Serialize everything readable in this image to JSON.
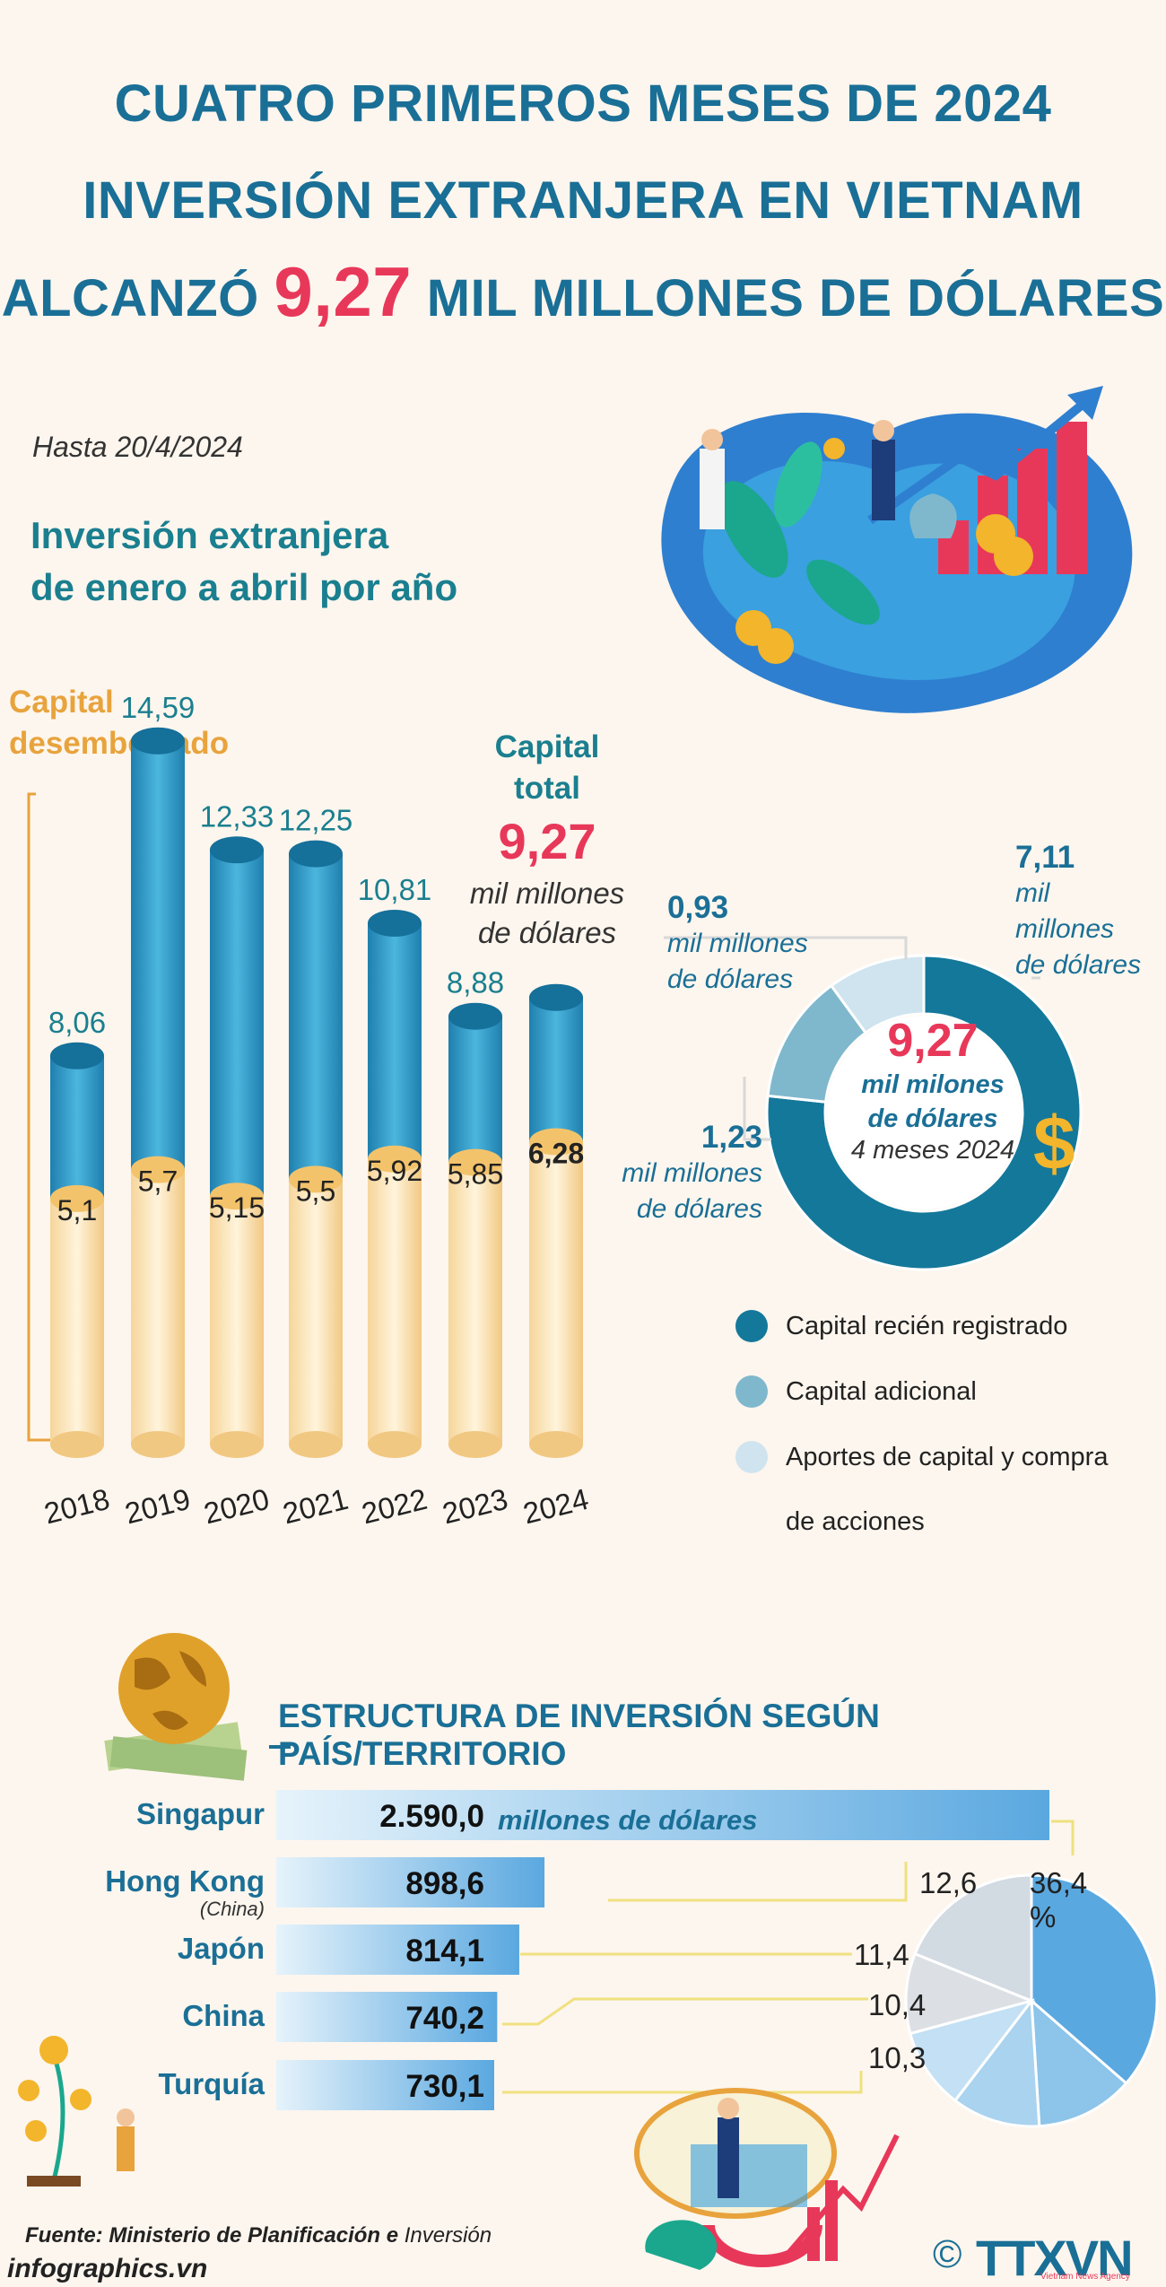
{
  "header": {
    "line1": "CUATRO PRIMEROS MESES DE 2024",
    "line2": "INVERSIÓN EXTRANJERA EN VIETNAM",
    "line3_pre": "ALCANZÓ ",
    "line3_highlight": "9,27",
    "line3_post": " MIL MILLONES DE DÓLARES"
  },
  "date_label": "Hasta 20/4/2024",
  "section1": {
    "title_line1": "Inversión extranjera",
    "title_line2": "de enero a abril por año",
    "disbursed_line1": "Capital",
    "disbursed_line2": "desembolsado",
    "total_line1": "Capital",
    "total_line2": "total",
    "total_value": "9,27",
    "total_unit_line1": "mil  millones",
    "total_unit_line2": "de dólares"
  },
  "donut": {
    "center_value": "9,27",
    "center_unit_line1": "mil milones",
    "center_unit_line2": "de dólares",
    "center_period": "4 meses 2024",
    "label_new_value": "7,11",
    "label_new_unit1": "mil",
    "label_new_unit2": "millones",
    "label_new_unit3": "de dólares",
    "label_contrib_value": "0,93",
    "label_contrib_unit1": "mil millones",
    "label_contrib_unit2": "de dólares",
    "label_add_value": "1,23",
    "label_add_unit1": "mil millones",
    "label_add_unit2": "de dólares",
    "legend_new": "Capital recién registrado",
    "legend_add": "Capital adicional",
    "legend_contrib_1": "Aportes de capital y compra",
    "legend_contrib_2": "de acciones",
    "colors": {
      "new": "#14789a",
      "add": "#7fb8cc",
      "contrib": "#cfe4ee"
    }
  },
  "section2": {
    "title": "ESTRUCTURA DE INVERSIÓN SEGÚN PAÍS/TERRITORIO",
    "unit": "millones de dólares",
    "hongkong_sub": "(China)"
  },
  "footer": {
    "source_bold": "Fuente: Ministerio de Planificación e",
    "source_italic": " Inversión",
    "site": "infographics.vn",
    "copyright": "©",
    "logo": "TTXVN",
    "logo_sub": "Vietnam News Agency"
  },
  "chart_data": [
    {
      "type": "bar",
      "categories": [
        "2018",
        "2019",
        "2020",
        "2021",
        "2022",
        "2023",
        "2024"
      ],
      "series": [
        {
          "values": [
            8.06,
            14.59,
            12.33,
            12.25,
            10.81,
            8.88,
            9.27
          ]
        },
        {
          "name": "Capital desembolsado",
          "values": [
            5.1,
            5.7,
            5.15,
            5.5,
            5.92,
            5.85,
            6.28
          ]
        }
      ],
      "total_labels": [
        "8,06",
        "14,59",
        "12,33",
        "12,25",
        "10,81",
        "8,88",
        ""
      ],
      "disbursed_labels": [
        "5,1",
        "5,7",
        "5,15",
        "5,5",
        "5,92",
        "5,85",
        "6,28"
      ],
      "ylim": [
        0,
        16
      ],
      "grid": false
    },
    {
      "type": "pie",
      "subtype": "donut",
      "labels": [
        "Capital recién registrado",
        "Capital adicional",
        "Aportes de capital y compra de acciones"
      ],
      "values": [
        7.11,
        1.23,
        0.93
      ]
    },
    {
      "type": "bar",
      "orientation": "horizontal",
      "categories": [
        "Singapur",
        "Hong Kong",
        "Japón",
        "China",
        "Turquía"
      ],
      "values": [
        2590.0,
        898.6,
        814.1,
        740.2,
        730.1
      ],
      "value_labels": [
        "2.590,0",
        "898,6",
        "814,1",
        "740,2",
        "730,1"
      ]
    },
    {
      "type": "pie",
      "labels": [
        "Singapur",
        "Hong Kong",
        "Japón",
        "China",
        "Turquía"
      ],
      "values": [
        36.4,
        12.6,
        11.4,
        10.4,
        10.3
      ],
      "value_labels": [
        "36,4 %",
        "12,6",
        "11,4",
        "10,4",
        "10,3"
      ]
    }
  ]
}
